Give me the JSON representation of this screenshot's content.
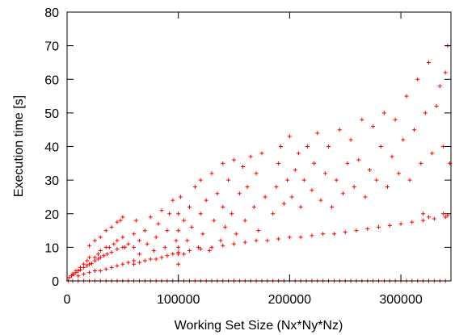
{
  "chart_data": {
    "type": "scatter",
    "title": "",
    "xlabel": "Working Set Size (Nx*Ny*Nz)",
    "ylabel": "Execution time [s]",
    "xlim": [
      0,
      345000
    ],
    "ylim": [
      0,
      80
    ],
    "xticks": [
      0,
      100000,
      200000,
      300000
    ],
    "xtick_labels": [
      "0",
      "100000",
      "200000",
      "300000"
    ],
    "yticks": [
      0,
      10,
      20,
      30,
      40,
      50,
      60,
      70,
      80
    ],
    "ytick_labels": [
      "0",
      "10",
      "20",
      "30",
      "40",
      "50",
      "60",
      "70",
      "80"
    ],
    "grid": false,
    "legend": "none",
    "marker": "+",
    "color": "#ff0000",
    "series": [
      {
        "points": [
          [
            1000,
            0
          ],
          [
            5000,
            0
          ],
          [
            10000,
            0
          ],
          [
            15000,
            0
          ],
          [
            20000,
            0
          ],
          [
            25000,
            0
          ],
          [
            30000,
            0
          ],
          [
            35000,
            0
          ],
          [
            40000,
            0
          ],
          [
            45000,
            0
          ],
          [
            50000,
            0
          ],
          [
            55000,
            0
          ],
          [
            60000,
            0
          ],
          [
            65000,
            0
          ],
          [
            70000,
            0
          ],
          [
            75000,
            0
          ],
          [
            80000,
            0
          ],
          [
            85000,
            0
          ],
          [
            90000,
            0
          ],
          [
            95000,
            0
          ],
          [
            100000,
            0
          ],
          [
            105000,
            0
          ],
          [
            110000,
            0
          ],
          [
            115000,
            0
          ],
          [
            120000,
            0
          ],
          [
            125000,
            0
          ],
          [
            130000,
            0
          ],
          [
            135000,
            0
          ],
          [
            140000,
            0
          ],
          [
            145000,
            0
          ],
          [
            150000,
            0
          ],
          [
            155000,
            0
          ],
          [
            160000,
            0
          ],
          [
            165000,
            0
          ],
          [
            170000,
            0
          ],
          [
            175000,
            0
          ],
          [
            180000,
            0
          ],
          [
            185000,
            0
          ],
          [
            190000,
            0
          ],
          [
            195000,
            0
          ],
          [
            200000,
            0
          ],
          [
            205000,
            0
          ],
          [
            210000,
            0
          ],
          [
            215000,
            0
          ],
          [
            220000,
            0
          ],
          [
            225000,
            0
          ],
          [
            230000,
            0
          ],
          [
            235000,
            0
          ],
          [
            240000,
            0
          ],
          [
            245000,
            0
          ],
          [
            250000,
            0
          ],
          [
            255000,
            0
          ],
          [
            260000,
            0
          ],
          [
            265000,
            0
          ],
          [
            270000,
            0
          ],
          [
            275000,
            0
          ],
          [
            280000,
            0
          ],
          [
            285000,
            0
          ],
          [
            290000,
            0
          ],
          [
            295000,
            0
          ],
          [
            300000,
            0
          ],
          [
            305000,
            0
          ],
          [
            310000,
            0
          ],
          [
            315000,
            0
          ],
          [
            320000,
            0
          ],
          [
            325000,
            0
          ],
          [
            330000,
            0
          ],
          [
            335000,
            0
          ],
          [
            340000,
            0
          ],
          [
            2000,
            1
          ],
          [
            4000,
            1.5
          ],
          [
            6000,
            2
          ],
          [
            8000,
            2.5
          ],
          [
            10000,
            3
          ],
          [
            12000,
            3.3
          ],
          [
            15000,
            4
          ],
          [
            18000,
            4.5
          ],
          [
            20000,
            5
          ],
          [
            22000,
            5.2
          ],
          [
            25000,
            6
          ],
          [
            28000,
            6.5
          ],
          [
            30000,
            7
          ],
          [
            33000,
            7.5
          ],
          [
            36000,
            8
          ],
          [
            40000,
            8.5
          ],
          [
            45000,
            9.5
          ],
          [
            50000,
            10
          ],
          [
            20000,
            10.5
          ],
          [
            25000,
            12
          ],
          [
            30000,
            13
          ],
          [
            35000,
            15
          ],
          [
            40000,
            16
          ],
          [
            45000,
            17.5
          ],
          [
            50000,
            19
          ],
          [
            48000,
            18
          ],
          [
            5000,
            2
          ],
          [
            8000,
            3
          ],
          [
            12000,
            4
          ],
          [
            15000,
            5
          ],
          [
            18000,
            6
          ],
          [
            20000,
            7
          ],
          [
            25000,
            7
          ],
          [
            28000,
            8
          ],
          [
            30000,
            9
          ],
          [
            35000,
            10
          ],
          [
            38000,
            10
          ],
          [
            42000,
            11
          ],
          [
            45000,
            12
          ],
          [
            50000,
            13
          ],
          [
            52000,
            10
          ],
          [
            55000,
            11
          ],
          [
            10000,
            1.5
          ],
          [
            15000,
            2
          ],
          [
            20000,
            2.5
          ],
          [
            25000,
            3
          ],
          [
            30000,
            3
          ],
          [
            35000,
            3.5
          ],
          [
            40000,
            4
          ],
          [
            45000,
            4.5
          ],
          [
            50000,
            5
          ],
          [
            55000,
            5.5
          ],
          [
            60000,
            6
          ],
          [
            60000,
            10
          ],
          [
            60000,
            14
          ],
          [
            62000,
            18
          ],
          [
            65000,
            8
          ],
          [
            65000,
            12
          ],
          [
            70000,
            15
          ],
          [
            72000,
            11
          ],
          [
            75000,
            19
          ],
          [
            78000,
            9
          ],
          [
            80000,
            13
          ],
          [
            82000,
            17
          ],
          [
            85000,
            21
          ],
          [
            88000,
            10
          ],
          [
            90000,
            15
          ],
          [
            92000,
            20
          ],
          [
            95000,
            24
          ],
          [
            98000,
            12
          ],
          [
            60000,
            5
          ],
          [
            65000,
            5.5
          ],
          [
            70000,
            6
          ],
          [
            75000,
            6.5
          ],
          [
            80000,
            6.5
          ],
          [
            85000,
            7
          ],
          [
            90000,
            7.5
          ],
          [
            95000,
            8
          ],
          [
            100000,
            8
          ],
          [
            100000,
            5
          ],
          [
            100000,
            10
          ],
          [
            100000,
            15
          ],
          [
            100000,
            20
          ],
          [
            102000,
            25
          ],
          [
            105000,
            8
          ],
          [
            105000,
            18
          ],
          [
            108000,
            12
          ],
          [
            110000,
            22
          ],
          [
            112000,
            16
          ],
          [
            115000,
            28
          ],
          [
            118000,
            10
          ],
          [
            120000,
            20
          ],
          [
            120000,
            30
          ],
          [
            122000,
            14
          ],
          [
            125000,
            24
          ],
          [
            128000,
            9
          ],
          [
            130000,
            32
          ],
          [
            132000,
            18
          ],
          [
            135000,
            26
          ],
          [
            138000,
            12
          ],
          [
            140000,
            22
          ],
          [
            140000,
            35
          ],
          [
            142000,
            16
          ],
          [
            145000,
            30
          ],
          [
            148000,
            20
          ],
          [
            150000,
            36
          ],
          [
            152000,
            14
          ],
          [
            155000,
            26
          ],
          [
            158000,
            34
          ],
          [
            160000,
            18
          ],
          [
            162000,
            28
          ],
          [
            165000,
            37
          ],
          [
            168000,
            22
          ],
          [
            170000,
            32
          ],
          [
            172000,
            15
          ],
          [
            175000,
            38
          ],
          [
            178000,
            25
          ],
          [
            100000,
            8.5
          ],
          [
            110000,
            9
          ],
          [
            120000,
            9.5
          ],
          [
            130000,
            10
          ],
          [
            140000,
            10.5
          ],
          [
            150000,
            11
          ],
          [
            160000,
            11.5
          ],
          [
            170000,
            12
          ],
          [
            180000,
            12
          ],
          [
            185000,
            20
          ],
          [
            188000,
            28
          ],
          [
            190000,
            35
          ],
          [
            192000,
            40
          ],
          [
            195000,
            23
          ],
          [
            198000,
            30
          ],
          [
            200000,
            43
          ],
          [
            202000,
            25
          ],
          [
            205000,
            33
          ],
          [
            208000,
            38
          ],
          [
            210000,
            22
          ],
          [
            213000,
            30
          ],
          [
            216000,
            40
          ],
          [
            220000,
            27
          ],
          [
            222000,
            35
          ],
          [
            225000,
            44
          ],
          [
            228000,
            24
          ],
          [
            232000,
            32
          ],
          [
            235000,
            40
          ],
          [
            238000,
            22
          ],
          [
            242000,
            30
          ],
          [
            245000,
            45
          ],
          [
            248000,
            26
          ],
          [
            252000,
            35
          ],
          [
            255000,
            42
          ],
          [
            258000,
            28
          ],
          [
            262000,
            36
          ],
          [
            265000,
            48
          ],
          [
            268000,
            25
          ],
          [
            272000,
            33
          ],
          [
            275000,
            46
          ],
          [
            278000,
            30
          ],
          [
            282000,
            40
          ],
          [
            285000,
            50
          ],
          [
            288000,
            28
          ],
          [
            292000,
            37
          ],
          [
            295000,
            48
          ],
          [
            298000,
            32
          ],
          [
            302000,
            42
          ],
          [
            305000,
            55
          ],
          [
            308000,
            30
          ],
          [
            312000,
            45
          ],
          [
            315000,
            60
          ],
          [
            318000,
            35
          ],
          [
            322000,
            50
          ],
          [
            325000,
            65
          ],
          [
            328000,
            38
          ],
          [
            332000,
            52
          ],
          [
            335000,
            58
          ],
          [
            338000,
            40
          ],
          [
            340000,
            62
          ],
          [
            342000,
            70
          ],
          [
            344000,
            35
          ],
          [
            190000,
            12.5
          ],
          [
            200000,
            13
          ],
          [
            210000,
            13
          ],
          [
            220000,
            13.5
          ],
          [
            230000,
            14
          ],
          [
            240000,
            14
          ],
          [
            250000,
            14.5
          ],
          [
            260000,
            15
          ],
          [
            270000,
            15.5
          ],
          [
            280000,
            16
          ],
          [
            290000,
            16.5
          ],
          [
            300000,
            17
          ],
          [
            310000,
            17.5
          ],
          [
            320000,
            18
          ],
          [
            330000,
            18.5
          ],
          [
            340000,
            19
          ],
          [
            320000,
            20
          ],
          [
            325000,
            19
          ],
          [
            338000,
            20
          ],
          [
            342000,
            19.5
          ]
        ]
      }
    ]
  }
}
